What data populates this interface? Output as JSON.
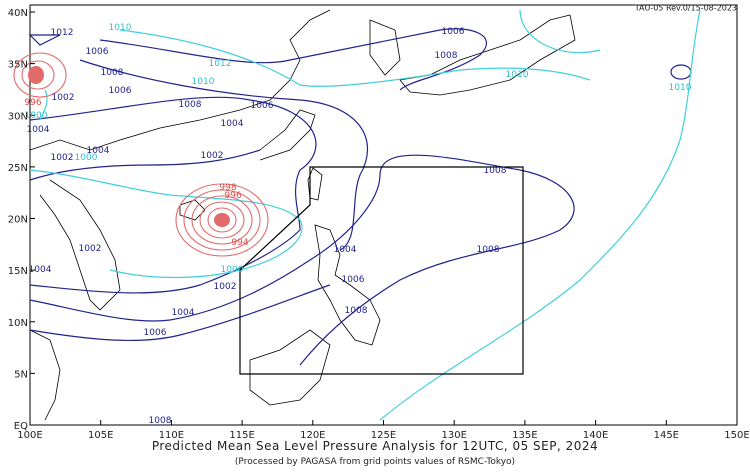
{
  "header": {
    "code": "TAU-05 Rev.0/15-08-2023",
    "title": "Predicted Mean Sea Level Pressure Analysis for 12UTC, 05 SEP, 2024",
    "subtitle": "(Processed by PAGASA from grid points values of RSMC-Tokyo)"
  },
  "axes": {
    "x_labels": [
      "100E",
      "105E",
      "110E",
      "115E",
      "120E",
      "125E",
      "130E",
      "135E",
      "140E",
      "145E",
      "150E"
    ],
    "y_labels": [
      "EQ",
      "5N",
      "10N",
      "15N",
      "20N",
      "25N",
      "30N",
      "35N",
      "40N"
    ]
  },
  "contour_labels": [
    "1012",
    "1006",
    "1010",
    "1008",
    "1012",
    "1010",
    "1006",
    "1002",
    "1008",
    "1006",
    "1004",
    "1004",
    "1002",
    "1004",
    "1000",
    "1002",
    "1006",
    "1008",
    "1010",
    "1010",
    "1008",
    "1008",
    "998",
    "996",
    "994",
    "1002",
    "1004",
    "1000",
    "1002",
    "1004",
    "1006",
    "1004",
    "1006",
    "1008",
    "1008",
    "996",
    "1000"
  ]
}
